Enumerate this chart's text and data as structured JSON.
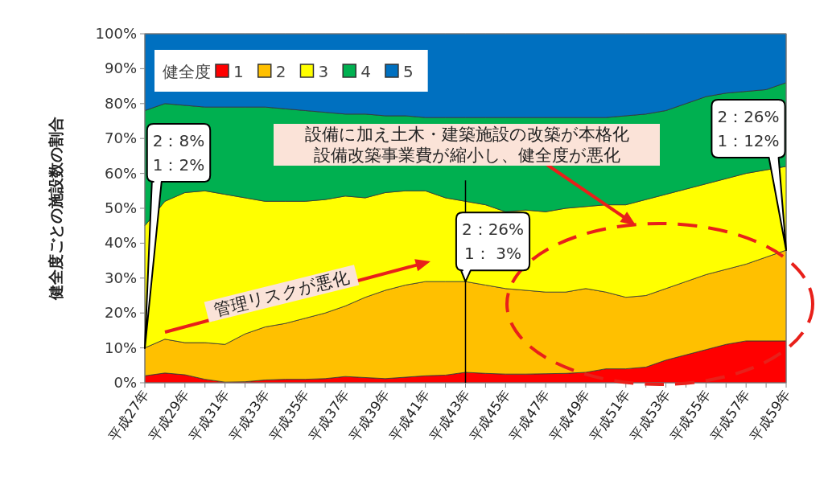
{
  "chart_data": {
    "type": "area",
    "stacked": true,
    "ylabel": "健全度ごとの施設数の割合",
    "legend_title": "健全度",
    "legend": "top left",
    "grid": false,
    "categories": [
      "平成27年",
      null,
      "平成29年",
      null,
      "平成31年",
      null,
      "平成33年",
      null,
      "平成35年",
      null,
      "平成37年",
      null,
      "平成39年",
      null,
      "平成41年",
      null,
      "平成43年",
      null,
      "平成45年",
      null,
      "平成47年",
      null,
      "平成49年",
      null,
      "平成51年",
      null,
      "平成53年",
      null,
      "平成55年",
      null,
      "平成57年",
      null,
      "平成59年"
    ],
    "ylim": [
      0,
      100
    ],
    "yticks": [
      {
        "value": 0,
        "label": "0%"
      },
      {
        "value": 10,
        "label": "10%"
      },
      {
        "value": 20,
        "label": "20%"
      },
      {
        "value": 30,
        "label": "30%"
      },
      {
        "value": 40,
        "label": "40%"
      },
      {
        "value": 50,
        "label": "50%"
      },
      {
        "value": 60,
        "label": "60%"
      },
      {
        "value": 70,
        "label": "70%"
      },
      {
        "value": 80,
        "label": "80%"
      },
      {
        "value": 90,
        "label": "90%"
      },
      {
        "value": 100,
        "label": "100%"
      }
    ],
    "series": [
      {
        "name": "1",
        "color": "#ff0000",
        "values": [
          2,
          2.8,
          2.3,
          1,
          0.2,
          0.3,
          0.8,
          1,
          1,
          1.2,
          1.8,
          1.5,
          1.2,
          1.6,
          2,
          2.2,
          3,
          2.7,
          2.5,
          2.5,
          2.6,
          2.7,
          3,
          4,
          4,
          4.5,
          6.5,
          8,
          9.5,
          11,
          12,
          12,
          12
        ]
      },
      {
        "name": "2",
        "color": "#ffc000",
        "values": [
          8,
          9.7,
          9.2,
          10.5,
          10.8,
          13.7,
          15.2,
          16,
          17.5,
          18.8,
          20.2,
          23,
          25.3,
          26.4,
          27,
          26.8,
          26,
          25.3,
          24.5,
          24,
          23.4,
          23.3,
          24,
          22,
          20.5,
          20.5,
          20.5,
          21,
          21.5,
          21.5,
          22,
          24,
          26
        ]
      },
      {
        "name": "3",
        "color": "#ffff00",
        "values": [
          35,
          39.5,
          43,
          43.5,
          43,
          39,
          36,
          35,
          33.5,
          32.5,
          31.5,
          28.5,
          28,
          27,
          26,
          24,
          23,
          23,
          22,
          23,
          23,
          24,
          23.5,
          25,
          26.5,
          27.5,
          27,
          26.5,
          26,
          26,
          26,
          25,
          24
        ]
      },
      {
        "name": "4",
        "color": "#00b050",
        "values": [
          33,
          28,
          25,
          24,
          25,
          26,
          27,
          26.5,
          26,
          25,
          23.5,
          24,
          22,
          21.5,
          21,
          23,
          24,
          25,
          27,
          26.5,
          27,
          26,
          25.5,
          25,
          25.5,
          24.5,
          24,
          24.5,
          25,
          24.5,
          23.5,
          23,
          24
        ]
      },
      {
        "name": "5",
        "color": "#0070c0",
        "values": [
          22,
          20,
          20.5,
          21,
          21,
          21,
          21,
          21.5,
          22,
          22.5,
          23,
          23,
          23.5,
          23.5,
          24,
          24,
          24,
          24,
          24,
          24,
          24,
          24,
          24,
          24,
          23.5,
          23,
          22,
          20,
          18,
          17,
          16.5,
          16,
          14
        ]
      }
    ],
    "ref_lines": [
      {
        "axis": "x",
        "value": "平成43年",
        "color": "#000000"
      }
    ],
    "annotations": [
      "2：8%\n1：2%",
      {
        "text": "2：26%\n1： 3%",
        "x": "平成43年",
        "y": 29
      },
      "2：26%\n1：12%",
      "管理リスクが悪化",
      "設備に加え土木・建築施設の改築が本格化",
      "設備改築事業費が縮小し、健全度が悪化"
    ]
  }
}
